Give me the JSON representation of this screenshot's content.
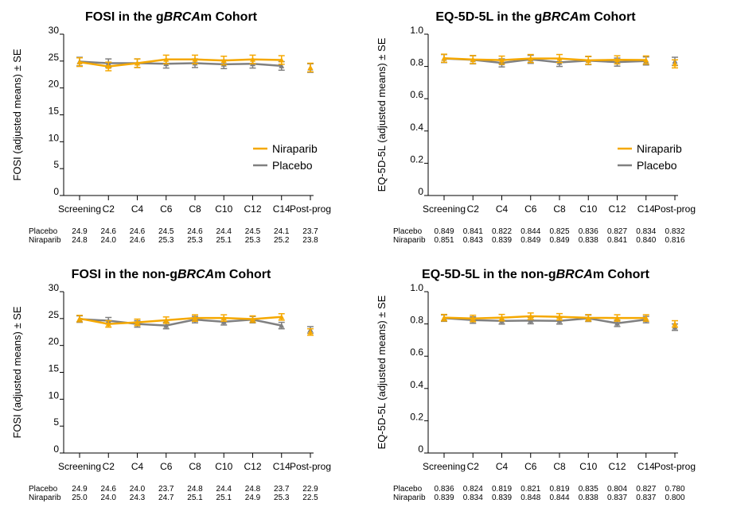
{
  "colors": {
    "niraparib": "#F5A800",
    "placebo": "#808080"
  },
  "chart_data": [
    {
      "type": "line",
      "title_prefix": "FOSI in the g",
      "title_italic": "BRCA",
      "title_suffix": "m Cohort",
      "ylabel": "FOSI (adjusted means) ± SE",
      "ylim": [
        0,
        30
      ],
      "yticks": [
        "0",
        "5",
        "10",
        "15",
        "20",
        "25",
        "30"
      ],
      "ystep": 5,
      "categories": [
        "Screening",
        "C2",
        "C4",
        "C6",
        "C8",
        "C10",
        "C12",
        "C14",
        "Post-prog"
      ],
      "legend": true,
      "legend_placement": "right-middle",
      "series": [
        {
          "name": "Niraparib",
          "values": [
            24.8,
            24.0,
            24.6,
            25.3,
            25.3,
            25.1,
            25.3,
            25.2,
            23.8
          ],
          "se": 0.8
        },
        {
          "name": "Placebo",
          "values": [
            24.9,
            24.6,
            24.6,
            24.5,
            24.6,
            24.4,
            24.5,
            24.1,
            23.7
          ],
          "se": 0.8
        }
      ],
      "table_labels": [
        "Placebo",
        "Niraparib"
      ],
      "table": [
        [
          "24.9",
          "24.6",
          "24.6",
          "24.5",
          "24.6",
          "24.4",
          "24.5",
          "24.1",
          "23.7"
        ],
        [
          "24.8",
          "24.0",
          "24.6",
          "25.3",
          "25.3",
          "25.1",
          "25.3",
          "25.2",
          "23.8"
        ]
      ]
    },
    {
      "type": "line",
      "title_prefix": "EQ-5D-5L in the g",
      "title_italic": "BRCA",
      "title_suffix": "m Cohort",
      "ylabel": "EQ-5D-5L (adjusted means) ± SE",
      "ylim": [
        0,
        1
      ],
      "yticks": [
        "0",
        "0.2",
        "0.4",
        "0.6",
        "0.8",
        "1.0"
      ],
      "ystep": 0.2,
      "categories": [
        "Screening",
        "C2",
        "C4",
        "C6",
        "C8",
        "C10",
        "C12",
        "C14",
        "Post-prog"
      ],
      "legend": true,
      "legend_placement": "right-middle",
      "series": [
        {
          "name": "Niraparib",
          "values": [
            0.851,
            0.843,
            0.839,
            0.849,
            0.849,
            0.838,
            0.841,
            0.84,
            0.816
          ],
          "se": 0.025
        },
        {
          "name": "Placebo",
          "values": [
            0.849,
            0.841,
            0.822,
            0.844,
            0.825,
            0.836,
            0.827,
            0.834,
            0.832
          ],
          "se": 0.025
        }
      ],
      "table_labels": [
        "Placebo",
        "Niraparib"
      ],
      "table": [
        [
          "0.849",
          "0.841",
          "0.822",
          "0.844",
          "0.825",
          "0.836",
          "0.827",
          "0.834",
          "0.832"
        ],
        [
          "0.851",
          "0.843",
          "0.839",
          "0.849",
          "0.849",
          "0.838",
          "0.841",
          "0.840",
          "0.816"
        ]
      ]
    },
    {
      "type": "line",
      "title_prefix": "FOSI in the non-g",
      "title_italic": "BRCA",
      "title_suffix": "m Cohort",
      "ylabel": "FOSI (adjusted means) ± SE",
      "ylim": [
        0,
        30
      ],
      "yticks": [
        "0",
        "5",
        "10",
        "15",
        "20",
        "25",
        "30"
      ],
      "ystep": 5,
      "categories": [
        "Screening",
        "C2",
        "C4",
        "C6",
        "C8",
        "C10",
        "C12",
        "C14",
        "Post-prog"
      ],
      "legend": false,
      "series": [
        {
          "name": "Niraparib",
          "values": [
            25.0,
            24.0,
            24.3,
            24.7,
            25.1,
            25.1,
            24.9,
            25.3,
            22.5
          ],
          "se": 0.6
        },
        {
          "name": "Placebo",
          "values": [
            24.9,
            24.6,
            24.0,
            23.7,
            24.8,
            24.4,
            24.8,
            23.7,
            22.9
          ],
          "se": 0.6
        }
      ],
      "table_labels": [
        "Placebo",
        "Niraparib"
      ],
      "table": [
        [
          "24.9",
          "24.6",
          "24.0",
          "23.7",
          "24.8",
          "24.4",
          "24.8",
          "23.7",
          "22.9"
        ],
        [
          "25.0",
          "24.0",
          "24.3",
          "24.7",
          "25.1",
          "25.1",
          "24.9",
          "25.3",
          "22.5"
        ]
      ]
    },
    {
      "type": "line",
      "title_prefix": "EQ-5D-5L in the non-g",
      "title_italic": "BRCA",
      "title_suffix": "m Cohort",
      "ylabel": "EQ-5D-5L (adjusted means) ± SE",
      "ylim": [
        0,
        1
      ],
      "yticks": [
        "0",
        "0.2",
        "0.4",
        "0.6",
        "0.8",
        "1.0"
      ],
      "ystep": 0.2,
      "categories": [
        "Screening",
        "C2",
        "C4",
        "C6",
        "C8",
        "C10",
        "C12",
        "C14",
        "Post-prog"
      ],
      "legend": false,
      "series": [
        {
          "name": "Niraparib",
          "values": [
            0.839,
            0.834,
            0.839,
            0.848,
            0.844,
            0.838,
            0.837,
            0.837,
            0.8
          ],
          "se": 0.02
        },
        {
          "name": "Placebo",
          "values": [
            0.836,
            0.824,
            0.819,
            0.821,
            0.819,
            0.835,
            0.804,
            0.827,
            0.78
          ],
          "se": 0.02
        }
      ],
      "table_labels": [
        "Placebo",
        "Niraparib"
      ],
      "table": [
        [
          "0.836",
          "0.824",
          "0.819",
          "0.821",
          "0.819",
          "0.835",
          "0.804",
          "0.827",
          "0.780"
        ],
        [
          "0.839",
          "0.834",
          "0.839",
          "0.848",
          "0.844",
          "0.838",
          "0.837",
          "0.837",
          "0.800"
        ]
      ]
    }
  ]
}
